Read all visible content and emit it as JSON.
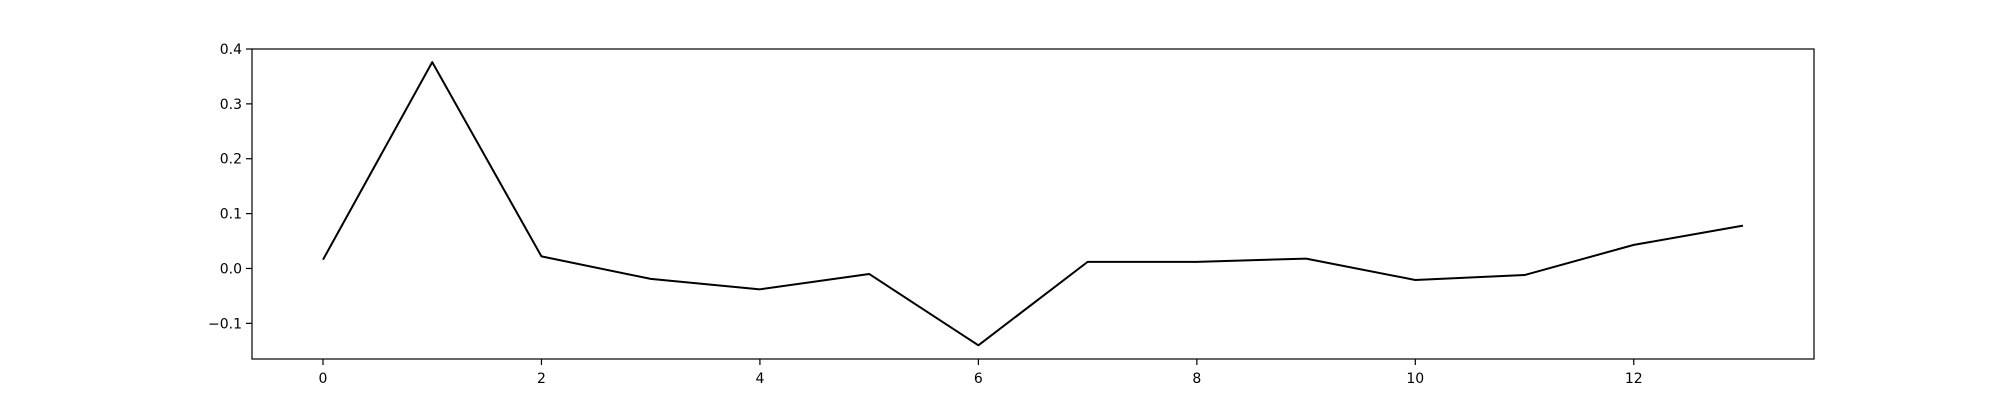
{
  "chart_data": {
    "type": "line",
    "title": "",
    "xlabel": "",
    "ylabel": "",
    "x": [
      0,
      1,
      2,
      3,
      4,
      5,
      6,
      7,
      8,
      9,
      10,
      11,
      12,
      13
    ],
    "series": [
      {
        "values": [
          0.016,
          0.376,
          0.022,
          -0.019,
          -0.038,
          -0.01,
          -0.14,
          0.012,
          0.012,
          0.018,
          -0.021,
          -0.012,
          0.043,
          0.078
        ],
        "color": "#000000"
      }
    ],
    "xlim": [
      -0.65,
      13.65
    ],
    "ylim": [
      -0.165,
      0.4
    ],
    "xticks": [
      0,
      2,
      4,
      6,
      8,
      10,
      12
    ],
    "xtick_labels": [
      "0",
      "2",
      "4",
      "6",
      "8",
      "10",
      "12"
    ],
    "yticks": [
      -0.1,
      0.0,
      0.1,
      0.2,
      0.3,
      0.4
    ],
    "ytick_labels": [
      "−0.1",
      "0.0",
      "0.1",
      "0.2",
      "0.3",
      "0.4"
    ],
    "grid": false,
    "legend": false
  }
}
